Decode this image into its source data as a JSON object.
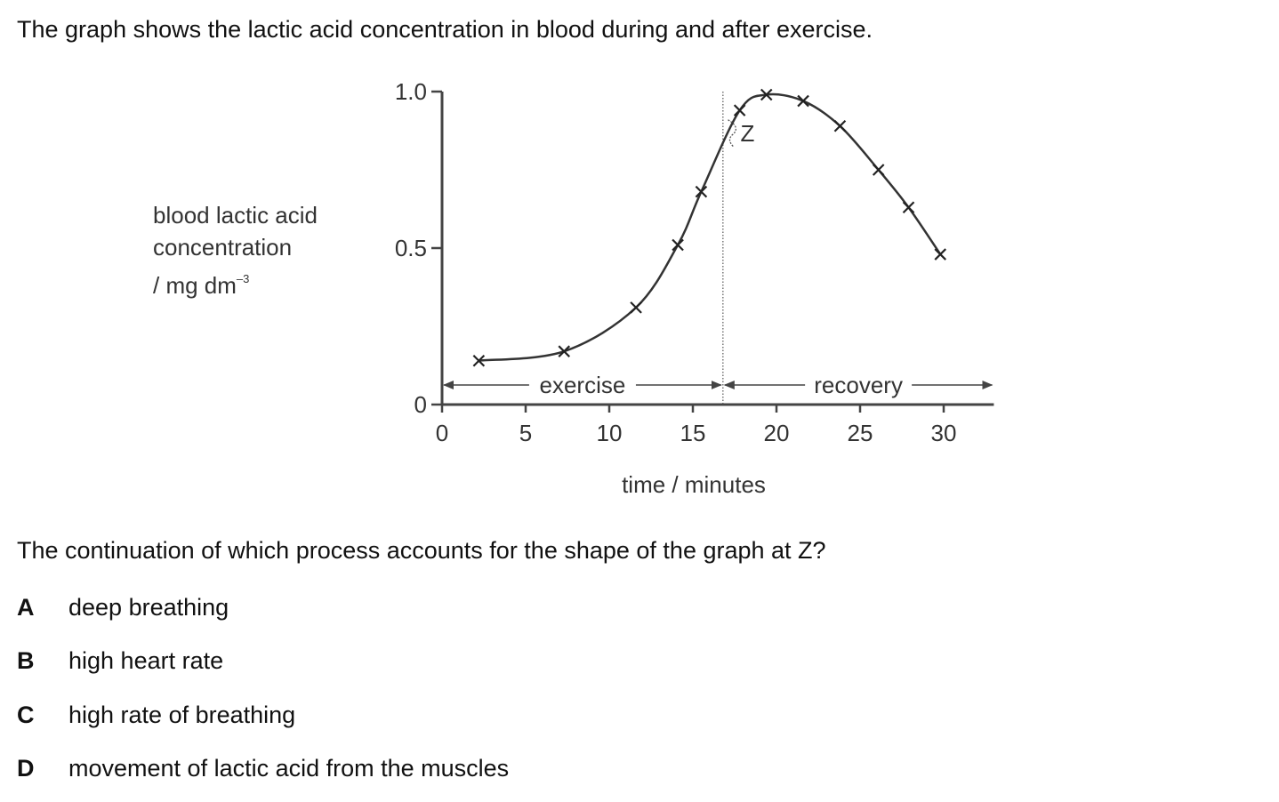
{
  "intro": "The graph shows the lactic acid concentration in blood during and after exercise.",
  "question": "The continuation of which process accounts for the shape of the graph at Z?",
  "options": [
    {
      "letter": "A",
      "text": "deep breathing"
    },
    {
      "letter": "B",
      "text": "high heart rate"
    },
    {
      "letter": "C",
      "text": "high rate of breathing"
    },
    {
      "letter": "D",
      "text": "movement of lactic acid from the muscles"
    }
  ],
  "chart_data": {
    "type": "line",
    "xlabel": "time / minutes",
    "ylabel_lines": [
      "blood lactic acid",
      "concentration"
    ],
    "ylabel_unit": "/ mg dm",
    "ylabel_unit_exp": "–3",
    "xlim": [
      0,
      33
    ],
    "ylim": [
      0,
      1.0
    ],
    "x_ticks": [
      0,
      5,
      10,
      15,
      20,
      25,
      30
    ],
    "x_tick_labels": [
      "0",
      "5",
      "10",
      "15",
      "20",
      "25",
      "30"
    ],
    "y_ticks": [
      0,
      0.5,
      1.0
    ],
    "y_tick_labels": [
      "0",
      "0.5",
      "1.0"
    ],
    "grid": false,
    "points": [
      {
        "x": 2.2,
        "y": 0.14
      },
      {
        "x": 7.3,
        "y": 0.17
      },
      {
        "x": 11.6,
        "y": 0.31
      },
      {
        "x": 14.1,
        "y": 0.51
      },
      {
        "x": 15.5,
        "y": 0.68
      },
      {
        "x": 17.8,
        "y": 0.94
      },
      {
        "x": 19.4,
        "y": 0.99
      },
      {
        "x": 21.6,
        "y": 0.97
      },
      {
        "x": 23.8,
        "y": 0.89
      },
      {
        "x": 26.1,
        "y": 0.75
      },
      {
        "x": 27.9,
        "y": 0.63
      },
      {
        "x": 29.8,
        "y": 0.48
      }
    ],
    "exercise_end": 16.8,
    "phases": [
      {
        "label": "exercise",
        "from": 0,
        "to": 16.8
      },
      {
        "label": "recovery",
        "from": 16.8,
        "to": 33
      }
    ],
    "annotation": {
      "label": "Z",
      "x": 17.1,
      "y": 0.87
    }
  }
}
